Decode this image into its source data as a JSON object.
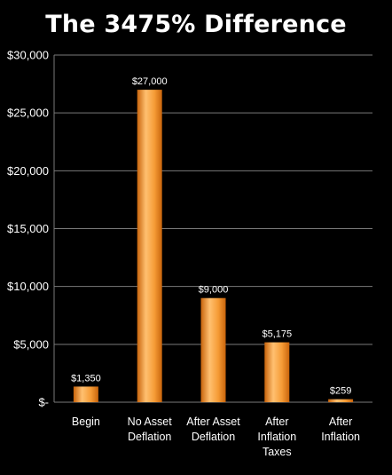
{
  "chart_data": {
    "type": "bar",
    "title": "The 3475% Difference",
    "categories": [
      [
        "Begin"
      ],
      [
        "No Asset",
        "Deflation"
      ],
      [
        "After Asset",
        "Deflation"
      ],
      [
        "After",
        "Inflation",
        "Taxes"
      ],
      [
        "After",
        "Inflation"
      ]
    ],
    "values": [
      1350,
      27000,
      9000,
      5175,
      259
    ],
    "data_labels": [
      "$1,350",
      "$27,000",
      "$9,000",
      "$5,175",
      "$259"
    ],
    "yticks": [
      {
        "value": 0,
        "label": "$-"
      },
      {
        "value": 5000,
        "label": "$5,000"
      },
      {
        "value": 10000,
        "label": "$10,000"
      },
      {
        "value": 15000,
        "label": "$15,000"
      },
      {
        "value": 20000,
        "label": "$20,000"
      },
      {
        "value": 25000,
        "label": "$25,000"
      },
      {
        "value": 30000,
        "label": "$30,000"
      }
    ],
    "ylim": [
      0,
      30000
    ],
    "grid": true,
    "legend": "none",
    "colors": {
      "background": "#000000",
      "bar_light": "#ffc070",
      "bar_mid": "#f59b35",
      "bar_dark": "#c8640c",
      "grid": "#7a7a7a",
      "text": "#ffffff"
    }
  }
}
